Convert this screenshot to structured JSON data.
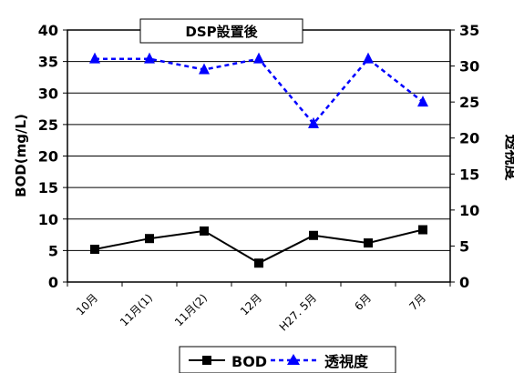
{
  "chart_data": {
    "type": "line",
    "title": "DSP設置後",
    "categories": [
      "10月",
      "11月(1)",
      "11月(2)",
      "12月",
      "H27. 5月",
      "6月",
      "7月"
    ],
    "ylabel_left": "BOD(mg/L)",
    "ylabel_right": "透視度",
    "ylim_left": [
      0,
      40
    ],
    "yticks_left": [
      "0",
      "5",
      "10",
      "15",
      "20",
      "25",
      "30",
      "35",
      "40"
    ],
    "ylim_right": [
      0,
      35
    ],
    "yticks_right": [
      "0",
      "5",
      "10",
      "15",
      "20",
      "25",
      "30",
      "35"
    ],
    "grid": true,
    "legend_position": "bottom",
    "series": [
      {
        "name": "BOD",
        "axis": "left",
        "values": [
          5.2,
          6.9,
          8.1,
          3.0,
          7.4,
          6.2,
          8.3
        ],
        "color": "#000000",
        "line": "solid",
        "marker": "square"
      },
      {
        "name": "透視度",
        "axis": "right",
        "values": [
          31,
          31,
          29.5,
          31,
          22,
          31,
          25
        ],
        "color": "#0000ff",
        "line": "dashed",
        "marker": "triangle"
      }
    ]
  }
}
